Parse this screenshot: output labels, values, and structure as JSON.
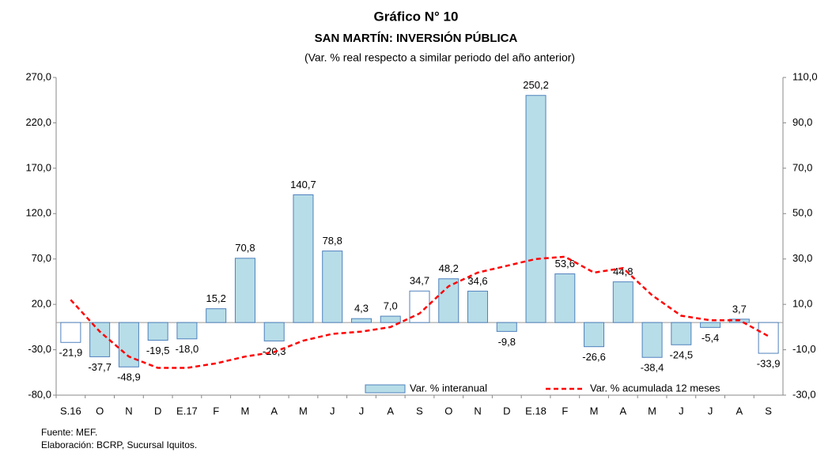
{
  "chart_data": {
    "type": "bar",
    "title": "Gráfico N° 10",
    "subtitle": [
      "SAN MARTÍN: INVERSIÓN PÚBLICA",
      "(Var. % real respecto a similar periodo del año anterior)"
    ],
    "notes": [
      "Fuente: MEF.",
      "Elaboración: BCRP, Sucursal Iquitos."
    ],
    "categories": [
      "S.16",
      "O",
      "N",
      "D",
      "E.17",
      "F",
      "M",
      "A",
      "M",
      "J",
      "J",
      "A",
      "S",
      "O",
      "N",
      "D",
      "E.18",
      "F",
      "M",
      "A",
      "M",
      "J",
      "J",
      "A",
      "S"
    ],
    "series": [
      {
        "name": "Var. % interanual",
        "type": "bar",
        "color": "#b7dde8",
        "stroke": "#4f81bd",
        "bar_colors": [
          "#ffffff",
          "#b7dde8",
          "#b7dde8",
          "#b7dde8",
          "#b7dde8",
          "#b7dde8",
          "#b7dde8",
          "#b7dde8",
          "#b7dde8",
          "#b7dde8",
          "#b7dde8",
          "#b7dde8",
          "#ffffff",
          "#b7dde8",
          "#b7dde8",
          "#b7dde8",
          "#b7dde8",
          "#b7dde8",
          "#b7dde8",
          "#b7dde8",
          "#b7dde8",
          "#b7dde8",
          "#b7dde8",
          "#b7dde8",
          "#ffffff"
        ],
        "values": [
          -21.9,
          -37.7,
          -48.9,
          -19.5,
          -18.0,
          15.2,
          70.8,
          -20.3,
          140.7,
          78.8,
          4.3,
          7.0,
          34.7,
          48.2,
          34.6,
          -9.8,
          250.2,
          53.6,
          -26.6,
          44.8,
          -38.4,
          -24.5,
          -5.4,
          3.7,
          -33.9
        ],
        "value_labels": [
          "-21,9",
          "-37,7",
          "-48,9",
          "-19,5",
          "-18,0",
          "15,2",
          "70,8",
          "-20,3",
          "140,7",
          "78,8",
          "4,3",
          "7,0",
          "34,7",
          "48,2",
          "34,6",
          "-9,8",
          "250,2",
          "53,6",
          "-26,6",
          "44,8",
          "-38,4",
          "-24,5",
          "-5,4",
          "3,7",
          "-33,9"
        ]
      },
      {
        "name": "Var. % acumulada 12 meses",
        "type": "line",
        "axis": "y2",
        "color": "#ff0000",
        "dashed": true,
        "values": [
          12,
          -2,
          -13,
          -18,
          -18,
          -16,
          -13,
          -11,
          -6,
          -3,
          -2,
          0,
          6,
          18,
          24,
          27,
          30,
          31,
          24,
          26,
          14,
          5,
          3,
          3,
          -4
        ]
      }
    ],
    "ylim": [
      -80,
      270
    ],
    "yticks": [
      {
        "value": -80,
        "label": "-80,0"
      },
      {
        "value": -30,
        "label": "-30,0"
      },
      {
        "value": 20,
        "label": "20,0"
      },
      {
        "value": 70,
        "label": "70,0"
      },
      {
        "value": 120,
        "label": "120,0"
      },
      {
        "value": 170,
        "label": "170,0"
      },
      {
        "value": 220,
        "label": "220,0"
      },
      {
        "value": 270,
        "label": "270,0"
      }
    ],
    "y2lim": [
      -30,
      110
    ],
    "y2ticks": [
      {
        "value": -30,
        "label": "-30,0"
      },
      {
        "value": -10,
        "label": "-10,0"
      },
      {
        "value": 10,
        "label": "10,0"
      },
      {
        "value": 30,
        "label": "30,0"
      },
      {
        "value": 50,
        "label": "50,0"
      },
      {
        "value": 70,
        "label": "70,0"
      },
      {
        "value": 90,
        "label": "90,0"
      },
      {
        "value": 110,
        "label": "110,0"
      }
    ],
    "grid": false,
    "legend": "lower right"
  }
}
